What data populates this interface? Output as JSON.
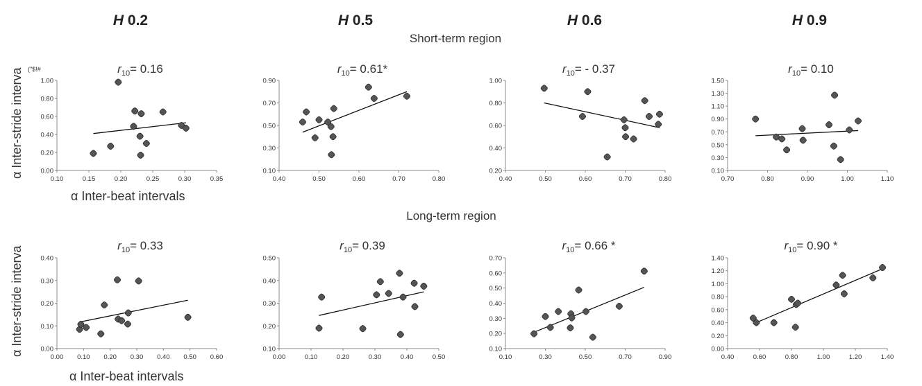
{
  "columns": [
    {
      "italic": "H",
      "label": " 0.2"
    },
    {
      "italic": "H",
      "label": " 0.5"
    },
    {
      "italic": "H",
      "label": " 0.6"
    },
    {
      "italic": "H",
      "label": " 0.9"
    }
  ],
  "regions": {
    "short": "Short-term region",
    "long": "Long-term region"
  },
  "ylabel": "α Inter-stride interva",
  "xlabel": "α Inter-beat intervals",
  "stray_label": "(\"$!#",
  "chart_data": [
    {
      "type": "scatter",
      "row": 0,
      "col": 0,
      "annotation": {
        "r": "r",
        "sub": "10",
        "text": "= 0.16"
      },
      "xlim": [
        0.1,
        0.35
      ],
      "ylim": [
        0.0,
        1.0
      ],
      "xticks": [
        "0.10",
        "0.15",
        "0.20",
        "0.25",
        "0.30",
        "0.35"
      ],
      "yticks": [
        "0.00",
        "0.20",
        "0.40",
        "0.60",
        "0.80",
        "1.00"
      ],
      "points": [
        [
          0.157,
          0.19
        ],
        [
          0.184,
          0.27
        ],
        [
          0.196,
          0.98
        ],
        [
          0.22,
          0.49
        ],
        [
          0.222,
          0.66
        ],
        [
          0.23,
          0.38
        ],
        [
          0.231,
          0.17
        ],
        [
          0.232,
          0.63
        ],
        [
          0.24,
          0.3
        ],
        [
          0.266,
          0.65
        ],
        [
          0.295,
          0.5
        ],
        [
          0.302,
          0.47
        ]
      ],
      "fit": [
        [
          0.157,
          0.41
        ],
        [
          0.302,
          0.53
        ]
      ]
    },
    {
      "type": "scatter",
      "row": 0,
      "col": 1,
      "annotation": {
        "r": "r",
        "sub": "10",
        "text": "= 0.61*"
      },
      "xlim": [
        0.4,
        0.8
      ],
      "ylim": [
        0.1,
        0.9
      ],
      "xticks": [
        "0.40",
        "0.50",
        "0.60",
        "0.70",
        "0.80"
      ],
      "yticks": [
        "0.10",
        "0.30",
        "0.50",
        "0.70",
        "0.90"
      ],
      "points": [
        [
          0.459,
          0.53
        ],
        [
          0.468,
          0.62
        ],
        [
          0.49,
          0.39
        ],
        [
          0.5,
          0.55
        ],
        [
          0.522,
          0.53
        ],
        [
          0.53,
          0.49
        ],
        [
          0.531,
          0.24
        ],
        [
          0.535,
          0.4
        ],
        [
          0.537,
          0.65
        ],
        [
          0.624,
          0.84
        ],
        [
          0.638,
          0.74
        ],
        [
          0.72,
          0.76
        ]
      ],
      "fit": [
        [
          0.459,
          0.44
        ],
        [
          0.72,
          0.8
        ]
      ]
    },
    {
      "type": "scatter",
      "row": 0,
      "col": 2,
      "annotation": {
        "r": "r",
        "sub": "10",
        "text": "= - 0.37"
      },
      "xlim": [
        0.4,
        0.8
      ],
      "ylim": [
        0.2,
        1.0
      ],
      "xticks": [
        "0.40",
        "0.50",
        "0.60",
        "0.70",
        "0.80"
      ],
      "yticks": [
        "0.20",
        "0.40",
        "0.60",
        "0.80",
        "1.00"
      ],
      "points": [
        [
          0.497,
          0.93
        ],
        [
          0.593,
          0.68
        ],
        [
          0.606,
          0.9
        ],
        [
          0.655,
          0.32
        ],
        [
          0.697,
          0.65
        ],
        [
          0.7,
          0.58
        ],
        [
          0.701,
          0.5
        ],
        [
          0.721,
          0.48
        ],
        [
          0.749,
          0.82
        ],
        [
          0.76,
          0.68
        ],
        [
          0.783,
          0.61
        ],
        [
          0.786,
          0.7
        ]
      ],
      "fit": [
        [
          0.497,
          0.8
        ],
        [
          0.786,
          0.58
        ]
      ]
    },
    {
      "type": "scatter",
      "row": 0,
      "col": 3,
      "annotation": {
        "r": "r",
        "sub": "10",
        "text": "= 0.10"
      },
      "xlim": [
        0.7,
        1.1
      ],
      "ylim": [
        0.1,
        1.5
      ],
      "xticks": [
        "0.70",
        "0.80",
        "0.90",
        "1.00",
        "1.10"
      ],
      "yticks": [
        "0.10",
        "0.30",
        "0.50",
        "0.70",
        "0.90",
        "1.10",
        "1.30",
        "1.50"
      ],
      "points": [
        [
          0.77,
          0.9
        ],
        [
          0.822,
          0.62
        ],
        [
          0.836,
          0.59
        ],
        [
          0.848,
          0.42
        ],
        [
          0.887,
          0.75
        ],
        [
          0.889,
          0.57
        ],
        [
          0.954,
          0.81
        ],
        [
          0.966,
          0.48
        ],
        [
          0.968,
          1.27
        ],
        [
          0.983,
          0.27
        ],
        [
          1.005,
          0.73
        ],
        [
          1.027,
          0.87
        ]
      ],
      "fit": [
        [
          0.77,
          0.64
        ],
        [
          1.027,
          0.72
        ]
      ]
    },
    {
      "type": "scatter",
      "row": 1,
      "col": 0,
      "annotation": {
        "r": "r",
        "sub": "10",
        "text": "= 0.33"
      },
      "xlim": [
        0.0,
        0.6
      ],
      "ylim": [
        0.0,
        0.4
      ],
      "xticks": [
        "0.00",
        "0.10",
        "0.20",
        "0.30",
        "0.40",
        "0.50",
        "0.60"
      ],
      "yticks": [
        "0.00",
        "0.10",
        "0.20",
        "0.30",
        "0.40"
      ],
      "points": [
        [
          0.085,
          0.085
        ],
        [
          0.09,
          0.107
        ],
        [
          0.11,
          0.093
        ],
        [
          0.165,
          0.065
        ],
        [
          0.178,
          0.192
        ],
        [
          0.227,
          0.303
        ],
        [
          0.23,
          0.13
        ],
        [
          0.243,
          0.123
        ],
        [
          0.266,
          0.108
        ],
        [
          0.268,
          0.157
        ],
        [
          0.307,
          0.298
        ],
        [
          0.492,
          0.138
        ]
      ],
      "fit": [
        [
          0.085,
          0.117
        ],
        [
          0.492,
          0.213
        ]
      ]
    },
    {
      "type": "scatter",
      "row": 1,
      "col": 1,
      "annotation": {
        "r": "r",
        "sub": "10",
        "text": "= 0.39"
      },
      "xlim": [
        0.0,
        0.5
      ],
      "ylim": [
        0.1,
        0.5
      ],
      "xticks": [
        "0.00",
        "0.10",
        "0.20",
        "0.30",
        "0.40",
        "0.50"
      ],
      "yticks": [
        "0.10",
        "0.20",
        "0.30",
        "0.40",
        "0.50"
      ],
      "points": [
        [
          0.125,
          0.19
        ],
        [
          0.133,
          0.327
        ],
        [
          0.262,
          0.188
        ],
        [
          0.305,
          0.337
        ],
        [
          0.317,
          0.395
        ],
        [
          0.343,
          0.343
        ],
        [
          0.377,
          0.432
        ],
        [
          0.38,
          0.162
        ],
        [
          0.388,
          0.327
        ],
        [
          0.423,
          0.388
        ],
        [
          0.425,
          0.285
        ],
        [
          0.453,
          0.375
        ]
      ],
      "fit": [
        [
          0.125,
          0.246
        ],
        [
          0.453,
          0.35
        ]
      ]
    },
    {
      "type": "scatter",
      "row": 1,
      "col": 2,
      "annotation": {
        "r": "r",
        "sub": "10",
        "text": "= 0.66 *"
      },
      "xlim": [
        0.1,
        0.9
      ],
      "ylim": [
        0.1,
        0.7
      ],
      "xticks": [
        "0.10",
        "0.30",
        "0.50",
        "0.70",
        "0.90"
      ],
      "yticks": [
        "0.10",
        "0.20",
        "0.30",
        "0.40",
        "0.50",
        "0.60",
        "0.70"
      ],
      "points": [
        [
          0.243,
          0.198
        ],
        [
          0.3,
          0.312
        ],
        [
          0.325,
          0.24
        ],
        [
          0.365,
          0.345
        ],
        [
          0.425,
          0.237
        ],
        [
          0.428,
          0.33
        ],
        [
          0.432,
          0.303
        ],
        [
          0.467,
          0.487
        ],
        [
          0.503,
          0.345
        ],
        [
          0.538,
          0.175
        ],
        [
          0.67,
          0.38
        ],
        [
          0.795,
          0.612
        ]
      ],
      "fit": [
        [
          0.243,
          0.208
        ],
        [
          0.795,
          0.505
        ]
      ]
    },
    {
      "type": "scatter",
      "row": 1,
      "col": 3,
      "annotation": {
        "r": "r",
        "sub": "10",
        "text": "= 0.90 *"
      },
      "xlim": [
        0.4,
        1.4
      ],
      "ylim": [
        0.0,
        1.4
      ],
      "xticks": [
        "0.40",
        "0.60",
        "0.80",
        "1.00",
        "1.20",
        "1.40"
      ],
      "yticks": [
        "0.00",
        "0.20",
        "0.40",
        "0.60",
        "0.80",
        "1.00",
        "1.20",
        "1.40"
      ],
      "points": [
        [
          0.56,
          0.47
        ],
        [
          0.58,
          0.4
        ],
        [
          0.69,
          0.4
        ],
        [
          0.8,
          0.76
        ],
        [
          0.825,
          0.33
        ],
        [
          0.83,
          0.68
        ],
        [
          0.84,
          0.7
        ],
        [
          1.08,
          0.98
        ],
        [
          1.12,
          1.13
        ],
        [
          1.13,
          0.845
        ],
        [
          1.31,
          1.09
        ],
        [
          1.37,
          1.25
        ]
      ],
      "fit": [
        [
          0.56,
          0.38
        ],
        [
          1.37,
          1.23
        ]
      ]
    }
  ]
}
